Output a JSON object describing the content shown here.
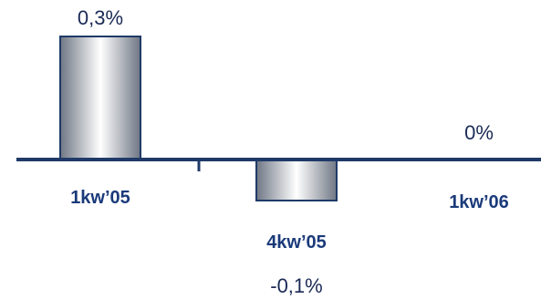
{
  "chart_data": {
    "type": "bar",
    "categories": [
      "1kw’05",
      "4kw’05",
      "1kw’06"
    ],
    "values": [
      0.3,
      -0.1,
      0.0
    ],
    "data_labels": [
      "0,3%",
      "-0,1%",
      "0%"
    ],
    "title": "",
    "xlabel": "",
    "ylabel": "",
    "ylim": [
      -0.1,
      0.3
    ],
    "grid": false,
    "legend": "none",
    "colors": {
      "axis": "#1f3a68",
      "bar_edge": "#1f3a68",
      "bar_dark": "#6f7784",
      "bar_light": "#ffffff",
      "label_text": "#1a2a55",
      "category_text": "#1a3a7a"
    }
  }
}
